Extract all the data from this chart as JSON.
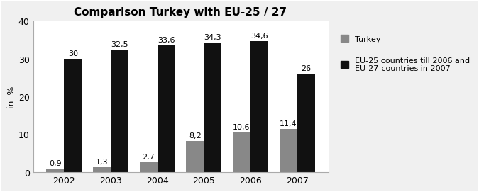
{
  "title": "Comparison Turkey with EU-25 / 27",
  "ylabel": "in  %",
  "years": [
    "2002",
    "2003",
    "2004",
    "2005",
    "2006",
    "2007"
  ],
  "turkey_values": [
    0.9,
    1.3,
    2.7,
    8.2,
    10.6,
    11.4
  ],
  "eu_values": [
    30,
    32.5,
    33.6,
    34.3,
    34.6,
    26
  ],
  "turkey_color": "#888888",
  "eu_color": "#111111",
  "ylim": [
    0,
    40
  ],
  "yticks": [
    0,
    10,
    20,
    30,
    40
  ],
  "bar_width": 0.38,
  "legend_turkey": "Turkey",
  "legend_eu": "EU-25 countries till 2006 and\nEU-27-countries in 2007",
  "title_fontsize": 11,
  "label_fontsize": 8,
  "tick_fontsize": 9,
  "legend_fontsize": 8,
  "ylabel_fontsize": 9,
  "fig_background": "#f0f0f0",
  "plot_background": "#ffffff"
}
